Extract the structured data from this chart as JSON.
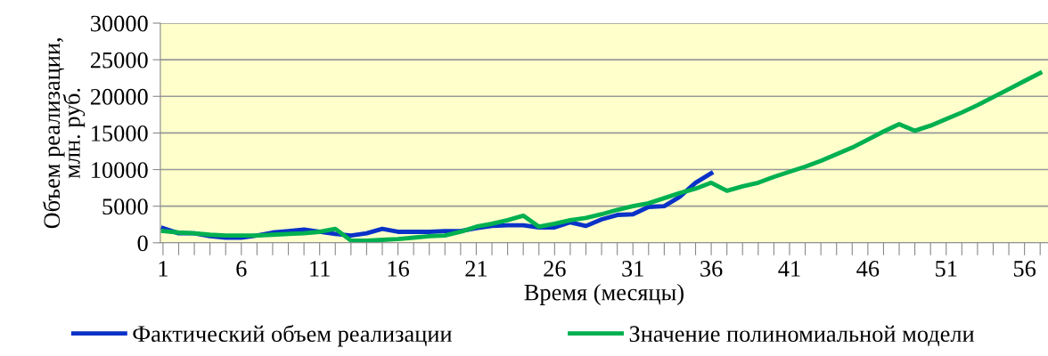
{
  "chart_data": {
    "type": "line",
    "xlabel": "Время (месяцы)",
    "ylabel": "Объем реализации, млн. руб.",
    "x": [
      1,
      2,
      3,
      4,
      5,
      6,
      7,
      8,
      9,
      10,
      11,
      12,
      13,
      14,
      15,
      16,
      17,
      18,
      19,
      20,
      21,
      22,
      23,
      24,
      25,
      26,
      27,
      28,
      29,
      30,
      31,
      32,
      33,
      34,
      35,
      36,
      37,
      38,
      39,
      40,
      41,
      42,
      43,
      44,
      45,
      46,
      47,
      48,
      49,
      50,
      51,
      52,
      53,
      54,
      55,
      56,
      57
    ],
    "series": [
      {
        "name": "Фактический объем реализации",
        "color": "#0a32c8",
        "values": [
          2000,
          1300,
          1300,
          900,
          700,
          700,
          1000,
          1400,
          1600,
          1800,
          1500,
          1200,
          1000,
          1300,
          1900,
          1500,
          1500,
          1500,
          1600,
          1600,
          2000,
          2300,
          2400,
          2400,
          2100,
          2100,
          2800,
          2300,
          3200,
          3800,
          3900,
          4900,
          5000,
          6300,
          8200,
          9500,
          null,
          null,
          null,
          null,
          null,
          null,
          null,
          null,
          null,
          null,
          null,
          null,
          null,
          null,
          null,
          null,
          null,
          null,
          null,
          null,
          null
        ]
      },
      {
        "name": "Значение полиномиальной модели",
        "color": "#00b050",
        "values": [
          1600,
          1400,
          1300,
          1100,
          1000,
          1000,
          1000,
          1100,
          1200,
          1300,
          1500,
          1900,
          300,
          300,
          400,
          500,
          700,
          900,
          1000,
          1500,
          2200,
          2600,
          3100,
          3700,
          2200,
          2600,
          3100,
          3400,
          3900,
          4500,
          5000,
          5400,
          6100,
          6800,
          7400,
          8200,
          7100,
          7700,
          8200,
          9000,
          9700,
          10400,
          11200,
          12100,
          13000,
          14100,
          15200,
          16200,
          15300,
          16000,
          16900,
          17800,
          18800,
          19900,
          21000,
          22100,
          23200
        ]
      }
    ],
    "xlim": [
      0.83,
      57.5
    ],
    "xticks": [
      1,
      {
        "value": 2,
        "label": null
      },
      {
        "value": 3,
        "label": null
      },
      {
        "value": 4,
        "label": null
      },
      {
        "value": 5,
        "label": null
      },
      6,
      {
        "value": 7,
        "label": null
      },
      {
        "value": 8,
        "label": null
      },
      {
        "value": 9,
        "label": null
      },
      {
        "value": 10,
        "label": null
      },
      11,
      {
        "value": 12,
        "label": null
      },
      {
        "value": 13,
        "label": null
      },
      {
        "value": 14,
        "label": null
      },
      {
        "value": 15,
        "label": null
      },
      16,
      {
        "value": 17,
        "label": null
      },
      {
        "value": 18,
        "label": null
      },
      {
        "value": 19,
        "label": null
      },
      {
        "value": 20,
        "label": null
      },
      21,
      {
        "value": 22,
        "label": null
      },
      {
        "value": 23,
        "label": null
      },
      {
        "value": 24,
        "label": null
      },
      {
        "value": 25,
        "label": null
      },
      26,
      {
        "value": 27,
        "label": null
      },
      {
        "value": 28,
        "label": null
      },
      {
        "value": 29,
        "label": null
      },
      {
        "value": 30,
        "label": null
      },
      31,
      {
        "value": 32,
        "label": null
      },
      {
        "value": 33,
        "label": null
      },
      {
        "value": 34,
        "label": null
      },
      {
        "value": 35,
        "label": null
      },
      36,
      {
        "value": 37,
        "label": null
      },
      {
        "value": 38,
        "label": null
      },
      {
        "value": 39,
        "label": null
      },
      {
        "value": 40,
        "label": null
      },
      41,
      {
        "value": 42,
        "label": null
      },
      {
        "value": 43,
        "label": null
      },
      {
        "value": 44,
        "label": null
      },
      {
        "value": 45,
        "label": null
      },
      46,
      {
        "value": 47,
        "label": null
      },
      {
        "value": 48,
        "label": null
      },
      {
        "value": 49,
        "label": null
      },
      {
        "value": 50,
        "label": null
      },
      51,
      {
        "value": 52,
        "label": null
      },
      {
        "value": 53,
        "label": null
      },
      {
        "value": 54,
        "label": null
      },
      {
        "value": 55,
        "label": null
      },
      56,
      {
        "value": 57,
        "label": null
      }
    ],
    "ylim": [
      0,
      30000
    ],
    "yticks": [
      0,
      5000,
      10000,
      15000,
      20000,
      25000,
      30000
    ],
    "grid": "y",
    "legend": "bottom",
    "marker": "none",
    "line_style": "solid"
  }
}
